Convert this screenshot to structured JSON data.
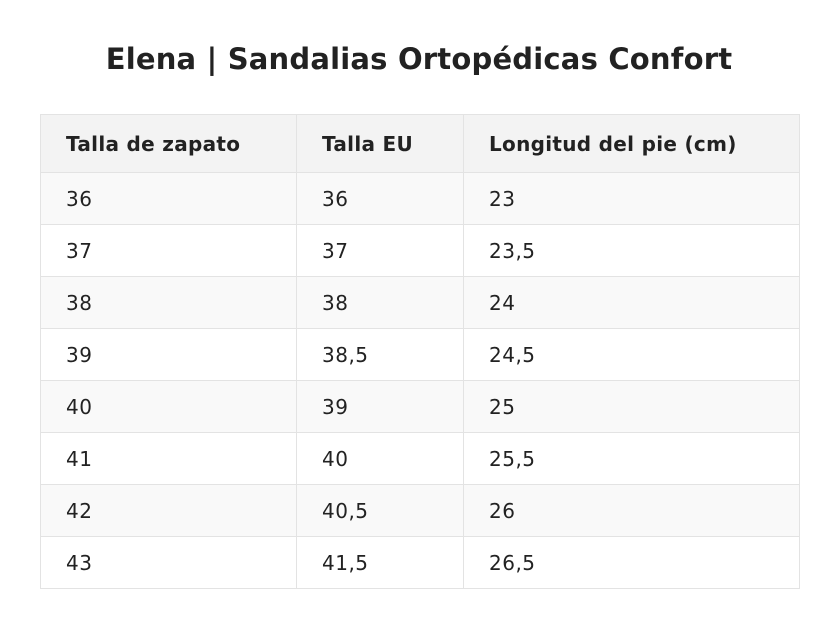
{
  "title": "Elena | Sandalias Ortopédicas Confort",
  "table": {
    "headers": [
      "Talla de zapato",
      "Talla EU",
      "Longitud del pie (cm)"
    ],
    "rows": [
      [
        "36",
        "36",
        "23"
      ],
      [
        "37",
        "37",
        "23,5"
      ],
      [
        "38",
        "38",
        "24"
      ],
      [
        "39",
        "38,5",
        "24,5"
      ],
      [
        "40",
        "39",
        "25"
      ],
      [
        "41",
        "40",
        "25,5"
      ],
      [
        "42",
        "40,5",
        "26"
      ],
      [
        "43",
        "41,5",
        "26,5"
      ]
    ]
  },
  "colors": {
    "text": "#222222",
    "header_bg": "#f3f3f3",
    "row_alt_bg": "#f9f9f9",
    "border": "#e3e3e3"
  }
}
